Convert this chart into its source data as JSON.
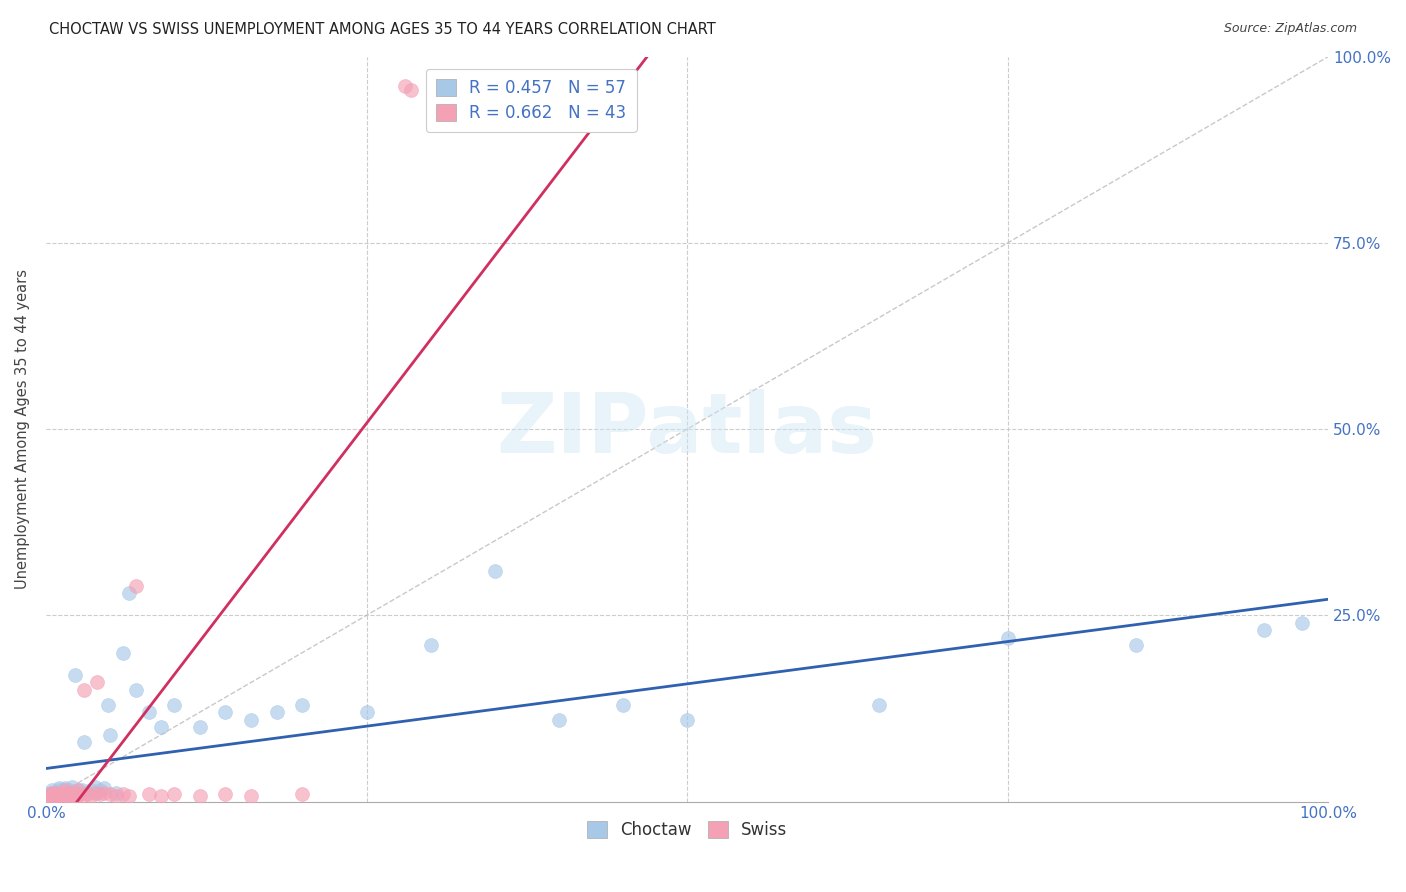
{
  "title": "CHOCTAW VS SWISS UNEMPLOYMENT AMONG AGES 35 TO 44 YEARS CORRELATION CHART",
  "source": "Source: ZipAtlas.com",
  "ylabel": "Unemployment Among Ages 35 to 44 years",
  "xlim": [
    0,
    1.0
  ],
  "ylim": [
    0,
    1.0
  ],
  "choctaw_R": 0.457,
  "choctaw_N": 57,
  "swiss_R": 0.662,
  "swiss_N": 43,
  "choctaw_color": "#a8c8e8",
  "swiss_color": "#f4a0b5",
  "choctaw_line_color": "#3060b0",
  "swiss_line_color": "#d03060",
  "diagonal_color": "#bbbbbb",
  "legend_label_choctaw": "Choctaw",
  "legend_label_swiss": "Swiss",
  "background_color": "#ffffff",
  "grid_color": "#cccccc",
  "choctaw_x": [
    0.002,
    0.003,
    0.004,
    0.005,
    0.006,
    0.007,
    0.008,
    0.009,
    0.01,
    0.011,
    0.012,
    0.013,
    0.014,
    0.015,
    0.016,
    0.017,
    0.018,
    0.019,
    0.02,
    0.021,
    0.022,
    0.023,
    0.025,
    0.026,
    0.028,
    0.03,
    0.032,
    0.035,
    0.038,
    0.04,
    0.042,
    0.045,
    0.048,
    0.05,
    0.055,
    0.06,
    0.065,
    0.07,
    0.08,
    0.09,
    0.1,
    0.12,
    0.14,
    0.16,
    0.18,
    0.2,
    0.25,
    0.3,
    0.35,
    0.4,
    0.45,
    0.5,
    0.65,
    0.75,
    0.85,
    0.95,
    0.98
  ],
  "choctaw_y": [
    0.01,
    0.008,
    0.012,
    0.015,
    0.01,
    0.008,
    0.012,
    0.015,
    0.018,
    0.01,
    0.012,
    0.015,
    0.01,
    0.018,
    0.01,
    0.012,
    0.015,
    0.008,
    0.02,
    0.01,
    0.012,
    0.17,
    0.015,
    0.01,
    0.015,
    0.08,
    0.012,
    0.015,
    0.02,
    0.012,
    0.015,
    0.018,
    0.13,
    0.09,
    0.012,
    0.2,
    0.28,
    0.15,
    0.12,
    0.1,
    0.13,
    0.1,
    0.12,
    0.11,
    0.12,
    0.13,
    0.12,
    0.21,
    0.31,
    0.11,
    0.13,
    0.11,
    0.13,
    0.22,
    0.21,
    0.23,
    0.24
  ],
  "swiss_x": [
    0.002,
    0.003,
    0.004,
    0.005,
    0.006,
    0.007,
    0.008,
    0.009,
    0.01,
    0.012,
    0.014,
    0.015,
    0.016,
    0.017,
    0.018,
    0.019,
    0.02,
    0.022,
    0.024,
    0.025,
    0.026,
    0.028,
    0.03,
    0.032,
    0.035,
    0.038,
    0.04,
    0.042,
    0.045,
    0.05,
    0.055,
    0.06,
    0.065,
    0.07,
    0.08,
    0.09,
    0.1,
    0.12,
    0.14,
    0.16,
    0.2,
    0.28,
    0.285
  ],
  "swiss_y": [
    0.008,
    0.01,
    0.008,
    0.012,
    0.008,
    0.01,
    0.012,
    0.008,
    0.01,
    0.01,
    0.008,
    0.015,
    0.01,
    0.008,
    0.012,
    0.008,
    0.01,
    0.012,
    0.008,
    0.015,
    0.01,
    0.008,
    0.15,
    0.01,
    0.008,
    0.012,
    0.16,
    0.01,
    0.012,
    0.01,
    0.008,
    0.01,
    0.008,
    0.29,
    0.01,
    0.008,
    0.01,
    0.008,
    0.01,
    0.008,
    0.01,
    0.96,
    0.955
  ]
}
